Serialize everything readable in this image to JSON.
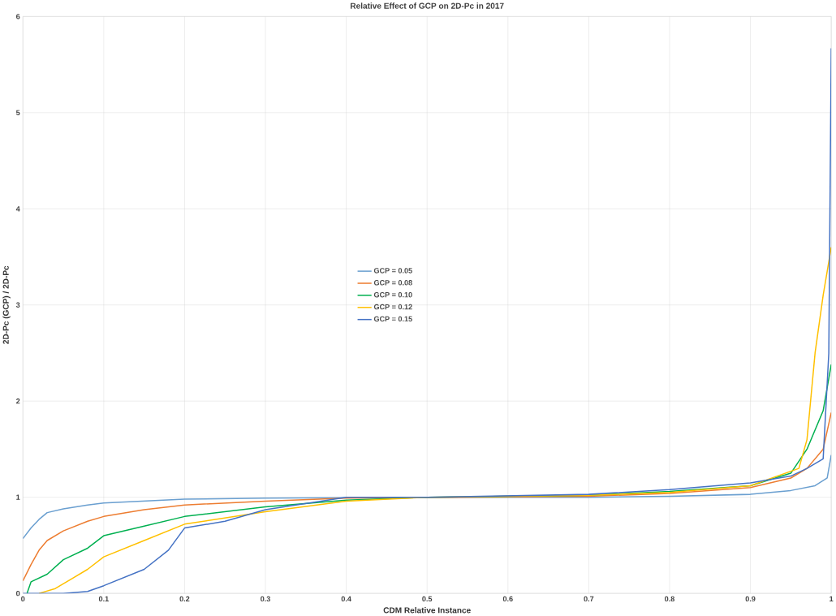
{
  "chart_data": {
    "type": "line",
    "title": "Relative Effect of GCP on 2D-Pc in 2017",
    "xlabel": "CDM Relative Instance",
    "ylabel": "2D-Pc (GCP) / 2D-Pc",
    "xlim": [
      0,
      1
    ],
    "ylim": [
      0,
      6
    ],
    "xticks": [
      0,
      0.1,
      0.2,
      0.3,
      0.4,
      0.5,
      0.6,
      0.7,
      0.8,
      0.9,
      1
    ],
    "yticks": [
      0,
      1,
      2,
      3,
      4,
      5,
      6
    ],
    "grid": true,
    "legend": "center",
    "marker": "none",
    "line_style": "solid",
    "series": [
      {
        "name": "GCP = 0.05",
        "color": "#6a9fd0",
        "x": [
          0,
          0.01,
          0.02,
          0.03,
          0.05,
          0.08,
          0.1,
          0.15,
          0.2,
          0.3,
          0.5,
          0.7,
          0.8,
          0.9,
          0.95,
          0.98,
          0.995,
          1
        ],
        "values": [
          0.57,
          0.68,
          0.77,
          0.84,
          0.88,
          0.92,
          0.94,
          0.96,
          0.98,
          0.99,
          1.0,
          1.0,
          1.01,
          1.03,
          1.07,
          1.12,
          1.2,
          1.44
        ]
      },
      {
        "name": "GCP = 0.08",
        "color": "#ed7d31",
        "x": [
          0,
          0.01,
          0.02,
          0.03,
          0.05,
          0.08,
          0.1,
          0.15,
          0.2,
          0.3,
          0.4,
          0.7,
          0.8,
          0.9,
          0.95,
          0.97,
          0.98,
          0.99,
          1
        ],
        "values": [
          0.13,
          0.3,
          0.45,
          0.55,
          0.65,
          0.75,
          0.8,
          0.87,
          0.92,
          0.96,
          0.99,
          1.01,
          1.04,
          1.1,
          1.2,
          1.3,
          1.4,
          1.5,
          1.88
        ]
      },
      {
        "name": "GCP = 0.10",
        "color": "#00b050",
        "x": [
          0.005,
          0.01,
          0.03,
          0.05,
          0.08,
          0.1,
          0.15,
          0.2,
          0.3,
          0.4,
          0.5,
          0.7,
          0.8,
          0.9,
          0.95,
          0.97,
          0.98,
          0.99,
          1
        ],
        "values": [
          0,
          0.12,
          0.2,
          0.35,
          0.47,
          0.6,
          0.7,
          0.8,
          0.9,
          0.97,
          1.0,
          1.02,
          1.06,
          1.12,
          1.25,
          1.5,
          1.7,
          1.9,
          2.38
        ]
      },
      {
        "name": "GCP = 0.12",
        "color": "#ffc000",
        "x": [
          0.02,
          0.04,
          0.06,
          0.08,
          0.1,
          0.15,
          0.2,
          0.3,
          0.4,
          0.5,
          0.7,
          0.8,
          0.9,
          0.96,
          0.97,
          0.98,
          0.99,
          1
        ],
        "values": [
          0,
          0.05,
          0.15,
          0.25,
          0.38,
          0.55,
          0.72,
          0.85,
          0.96,
          1.0,
          1.02,
          1.05,
          1.12,
          1.3,
          1.6,
          2.5,
          3.1,
          3.6
        ]
      },
      {
        "name": "GCP = 0.15",
        "color": "#4472c4",
        "x": [
          0,
          0.05,
          0.08,
          0.1,
          0.15,
          0.18,
          0.2,
          0.25,
          0.3,
          0.4,
          0.5,
          0.7,
          0.8,
          0.9,
          0.95,
          0.97,
          0.99,
          0.997,
          1
        ],
        "values": [
          0,
          0,
          0.02,
          0.08,
          0.25,
          0.45,
          0.68,
          0.75,
          0.87,
          1.0,
          1.0,
          1.03,
          1.08,
          1.15,
          1.22,
          1.3,
          1.4,
          2.5,
          5.67
        ]
      }
    ]
  }
}
